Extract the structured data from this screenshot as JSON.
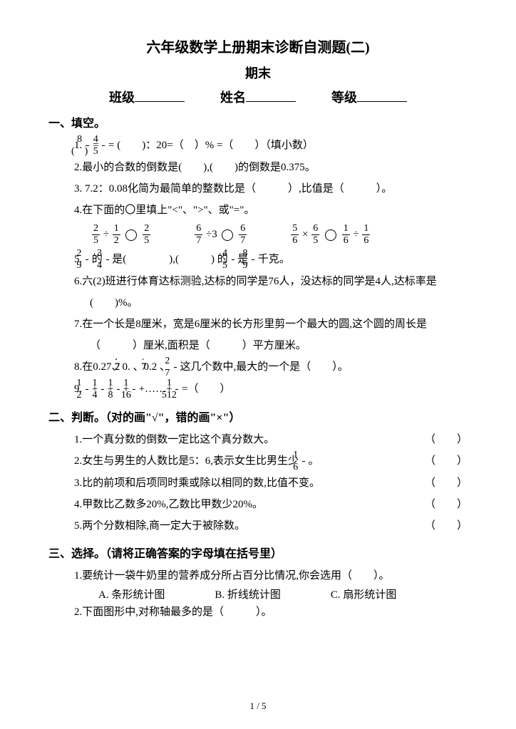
{
  "title": "六年级数学上册期末诊断自测题(二)",
  "subtitle": "期末",
  "info": {
    "class": "班级",
    "name": "姓名",
    "grade": "等级"
  },
  "sections": {
    "s1": "一、填空。",
    "s2": "二、判断。（对的画\"√\"，错的画\"×\"）",
    "s3": "三、选择。（请将正确答案的字母填在括号里）"
  },
  "q": {
    "q1_1a": "1.",
    "q1_1b": " = ",
    "q1_1c": " = (　　)：20=（　）% =（　　）（填小数）",
    "q1_2": "2.最小的合数的倒数是(　　),(　　)的倒数是0.375。",
    "q1_3": "3. 7.2：0.08化简为最简单的整数比是（　　　）,比值是（　　　）。",
    "q1_4": "4.在下面的〇里填上\"<\"、\">\"、或\"=\"。",
    "q1_5a": "5.",
    "q1_5b": " 的 ",
    "q1_5c": " 是(　　　　),(　　　) 的 ",
    "q1_5d": " 是 ",
    "q1_5e": " 千克。",
    "q1_6": "6.六(2)班进行体育达标测验,达标的同学是76人，没达标的同学是4人,达标率是(　　)%。",
    "q1_7": "7.在一个长是8厘米，宽是6厘米的长方形里剪一个最大的圆,这个圆的周长是（　　　）厘米,面积是（　　　）平方厘米。",
    "q1_8a": "8.在0.27、0.",
    "q1_8b": " 、0.2",
    "q1_8c": " 、 ",
    "q1_8d": "  这几个数中,最大的一个是（　　）。",
    "q1_9a": "9.",
    "q1_9b": " + ",
    "q1_9c": " + ",
    "q1_9d": " + ",
    "q1_9e": " +……+ ",
    "q1_9f": " =（　　）",
    "q2_1": "1.一个真分数的倒数一定比这个真分数大。",
    "q2_2a": "2.女生与男生的人数比是5：6,表示女生比男生少",
    "q2_2b": " 。",
    "q2_3": "3.比的前项和后项同时乘或除以相同的数,比值不变。",
    "q2_4": "4.甲数比乙数多20%,乙数比甲数少20%。",
    "q2_5": "5.两个分数相除,商一定大于被除数。",
    "q3_1": "1.要统计一袋牛奶里的营养成分所占百分比情况,你会选用（　　）。",
    "q3_1a": "A. 条形统计图",
    "q3_1b": "B. 折线统计图",
    "q3_1c": "C. 扇形统计图",
    "q3_2": "2.下面图形中,对称轴最多的是（　　　）。"
  },
  "fracs": {
    "f8p": {
      "n": "8",
      "d": "(　)"
    },
    "f45": {
      "n": "4",
      "d": "5"
    },
    "f25": {
      "n": "2",
      "d": "5"
    },
    "f12": {
      "n": "1",
      "d": "2"
    },
    "f67": {
      "n": "6",
      "d": "7"
    },
    "f56": {
      "n": "5",
      "d": "6"
    },
    "f65": {
      "n": "6",
      "d": "5"
    },
    "f16": {
      "n": "1",
      "d": "6"
    },
    "f29": {
      "n": "2",
      "d": "9"
    },
    "f34": {
      "n": "3",
      "d": "4"
    },
    "f45b": {
      "n": "4",
      "d": "5"
    },
    "f89": {
      "n": "8",
      "d": "9"
    },
    "f27": {
      "n": "2",
      "d": "7"
    },
    "f12b": {
      "n": "1",
      "d": "2"
    },
    "f14": {
      "n": "1",
      "d": "4"
    },
    "f18": {
      "n": "1",
      "d": "8"
    },
    "f116": {
      "n": "1",
      "d": "16"
    },
    "f1512": {
      "n": "1",
      "d": "512"
    },
    "f16b": {
      "n": "1",
      "d": "6"
    }
  },
  "paren": "（　　）",
  "footer": "1 / 5",
  "math4": {
    "div": "÷",
    "mul": "×",
    "three": "3"
  }
}
